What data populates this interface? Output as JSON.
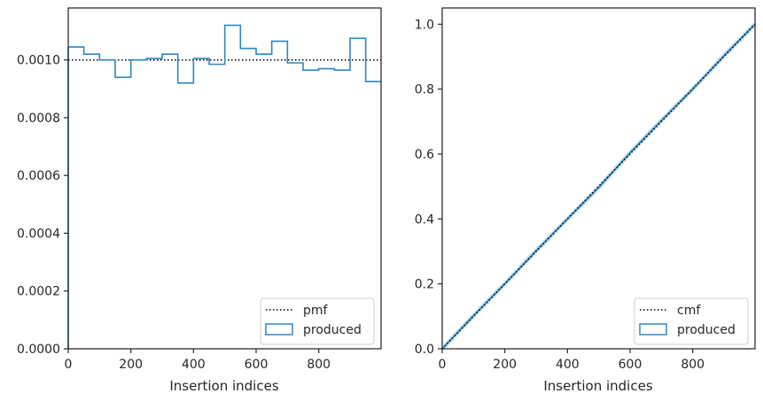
{
  "colors": {
    "hist": "#2e86c1",
    "ref": "#000000",
    "cmf_light": "#9ecae1",
    "frame": "#262626"
  },
  "chart_data": [
    {
      "type": "step",
      "xlabel": "Insertion indices",
      "ylabel": "",
      "xlim": [
        0,
        999
      ],
      "ylim": [
        0,
        0.00118
      ],
      "xticks": [
        0,
        200,
        400,
        600,
        800
      ],
      "xtick_labels": [
        "0",
        "200",
        "400",
        "600",
        "800"
      ],
      "yticks": [
        0,
        0.0002,
        0.0004,
        0.0006,
        0.0008,
        0.001
      ],
      "ytick_labels": [
        "0.0000",
        "0.0002",
        "0.0004",
        "0.0006",
        "0.0008",
        "0.0010"
      ],
      "bin_edges": [
        0,
        50,
        100,
        150,
        200,
        250,
        300,
        350,
        400,
        450,
        500,
        550,
        600,
        650,
        700,
        750,
        800,
        850,
        900,
        950,
        999
      ],
      "series": [
        {
          "name": "pmf",
          "style": "dotted",
          "values": [
            0.001,
            0.001
          ]
        },
        {
          "name": "produced",
          "style": "step",
          "values": [
            0.001045,
            0.00102,
            0.001,
            0.00094,
            0.001,
            0.001005,
            0.00102,
            0.00092,
            0.001005,
            0.000985,
            0.00112,
            0.00104,
            0.00102,
            0.001065,
            0.00099,
            0.000965,
            0.00097,
            0.000965,
            0.001075,
            0.000925
          ]
        }
      ],
      "legend": {
        "position": "lower-right",
        "entries": [
          "pmf",
          "produced"
        ]
      }
    },
    {
      "type": "line",
      "xlabel": "Insertion indices",
      "ylabel": "",
      "xlim": [
        0,
        999
      ],
      "ylim": [
        0,
        1.05
      ],
      "xticks": [
        0,
        200,
        400,
        600,
        800
      ],
      "xtick_labels": [
        "0",
        "200",
        "400",
        "600",
        "800"
      ],
      "yticks": [
        0,
        0.2,
        0.4,
        0.6,
        0.8,
        1.0
      ],
      "ytick_labels": [
        "0.0",
        "0.2",
        "0.4",
        "0.6",
        "0.8",
        "1.0"
      ],
      "series": [
        {
          "name": "cmf",
          "style": "dotted",
          "x": [
            0,
            999
          ],
          "y": [
            0,
            1.0
          ]
        },
        {
          "name": "produced",
          "style": "solid",
          "x": [
            0,
            100,
            200,
            300,
            400,
            500,
            600,
            700,
            800,
            900,
            999
          ],
          "y": [
            0,
            0.102,
            0.2,
            0.302,
            0.4,
            0.497,
            0.604,
            0.703,
            0.8,
            0.903,
            1.0
          ]
        }
      ],
      "legend": {
        "position": "lower-right",
        "entries": [
          "cmf",
          "produced"
        ]
      }
    }
  ]
}
